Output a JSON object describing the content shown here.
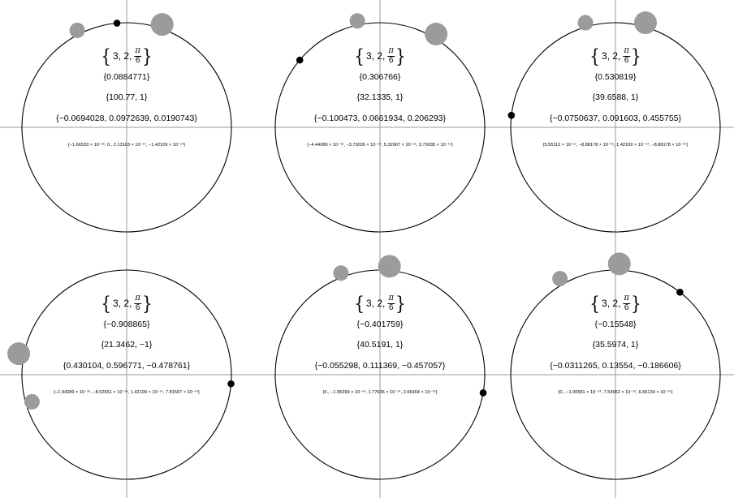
{
  "panels": [
    {
      "param_prefix": "3, 2,",
      "param_num": "π",
      "param_den": "6",
      "line2": "{0.0884771}",
      "line3": "{100.77, 1}",
      "line4": "{−0.0694028, 0.0972639, 0.0190743}",
      "line5": "{−1.66533 × 10⁻¹⁶, 0., 2.13163 × 10⁻¹⁴, −1.42109 × 10⁻¹⁴}",
      "point_angle_deg": 95.3,
      "small_disk": {
        "angle_deg": 117,
        "radius_frac": 1.04,
        "size": "small"
      },
      "large_disk": {
        "angle_deg": 71,
        "radius_frac": 1.04,
        "size": "large"
      }
    },
    {
      "param_prefix": "3, 2,",
      "param_num": "π",
      "param_den": "6",
      "line2": "{0.306766}",
      "line3": "{32.1335, 1}",
      "line4": "{−0.100473, 0.0661934, 0.206293}",
      "line5": "{−4.44089 × 10⁻¹⁶, −3.73035 × 10⁻¹⁴, 5.32907 × 10⁻¹⁵, 3.73035 × 10⁻¹⁴}",
      "point_angle_deg": 140.0,
      "small_disk": {
        "angle_deg": 102,
        "radius_frac": 1.04,
        "size": "small"
      },
      "large_disk": {
        "angle_deg": 59,
        "radius_frac": 1.04,
        "size": "large"
      }
    },
    {
      "param_prefix": "3, 2,",
      "param_num": "π",
      "param_den": "6",
      "line2": "{0.530819}",
      "line3": "{39.6588, 1}",
      "line4": "{−0.0750637, 0.091603, 0.455755}",
      "line5": "{5.55112 × 10⁻¹⁷, −8.88178 × 10⁻¹⁵, 1.42109 × 10⁻¹⁴, −8.88178 × 10⁻¹⁵}",
      "point_angle_deg": 173.4,
      "small_disk": {
        "angle_deg": 106,
        "radius_frac": 1.04,
        "size": "small"
      },
      "large_disk": {
        "angle_deg": 74,
        "radius_frac": 1.04,
        "size": "large"
      }
    },
    {
      "param_prefix": "3, 2,",
      "param_num": "π",
      "param_den": "6",
      "line2": "{−0.908865}",
      "line3": "{21.3462, −1}",
      "line4": "{0.430104, 0.596771, −0.478761}",
      "line5": "{−1.94289 × 10⁻¹⁵, −8.52651 × 10⁻¹⁴, 1.42109 × 10⁻¹⁴, 7.81597 × 10⁻¹⁴}",
      "point_angle_deg": -5.0,
      "small_disk": {
        "angle_deg": 196,
        "radius_frac": 0.94,
        "size": "small"
      },
      "large_disk": {
        "angle_deg": 169,
        "radius_frac": 1.05,
        "size": "large"
      }
    },
    {
      "param_prefix": "3, 2,",
      "param_num": "π",
      "param_den": "6",
      "line2": "{−0.401759}",
      "line3": "{40.5191, 1}",
      "line4": "{−0.055298, 0.111369, −0.457057}",
      "line5": "{0., −1.95399 × 10⁻¹⁴, 1.77636 × 10⁻¹⁴, 2.66454 × 10⁻¹⁵}",
      "point_angle_deg": -10.0,
      "small_disk": {
        "angle_deg": 111,
        "radius_frac": 1.04,
        "size": "small"
      },
      "large_disk": {
        "angle_deg": 85,
        "radius_frac": 1.04,
        "size": "large"
      }
    },
    {
      "param_prefix": "3, 2,",
      "param_num": "π",
      "param_den": "6",
      "line2": "{−0.15548}",
      "line3": "{35.5974, 1}",
      "line4": "{−0.0311265, 0.13554, −0.186606}",
      "line5": "{0., −1.06581 × 10⁻¹⁴, 7.54952 × 10⁻¹⁵, 6.66134 × 10⁻¹⁵}",
      "point_angle_deg": 52.0,
      "small_disk": {
        "angle_deg": 120,
        "radius_frac": 1.06,
        "size": "small"
      },
      "large_disk": {
        "angle_deg": 88,
        "radius_frac": 1.06,
        "size": "large"
      }
    }
  ],
  "colors": {
    "circle": "#000000",
    "axes": "#9a9a9a",
    "disk": "#9b9b9b",
    "point": "#000000"
  }
}
